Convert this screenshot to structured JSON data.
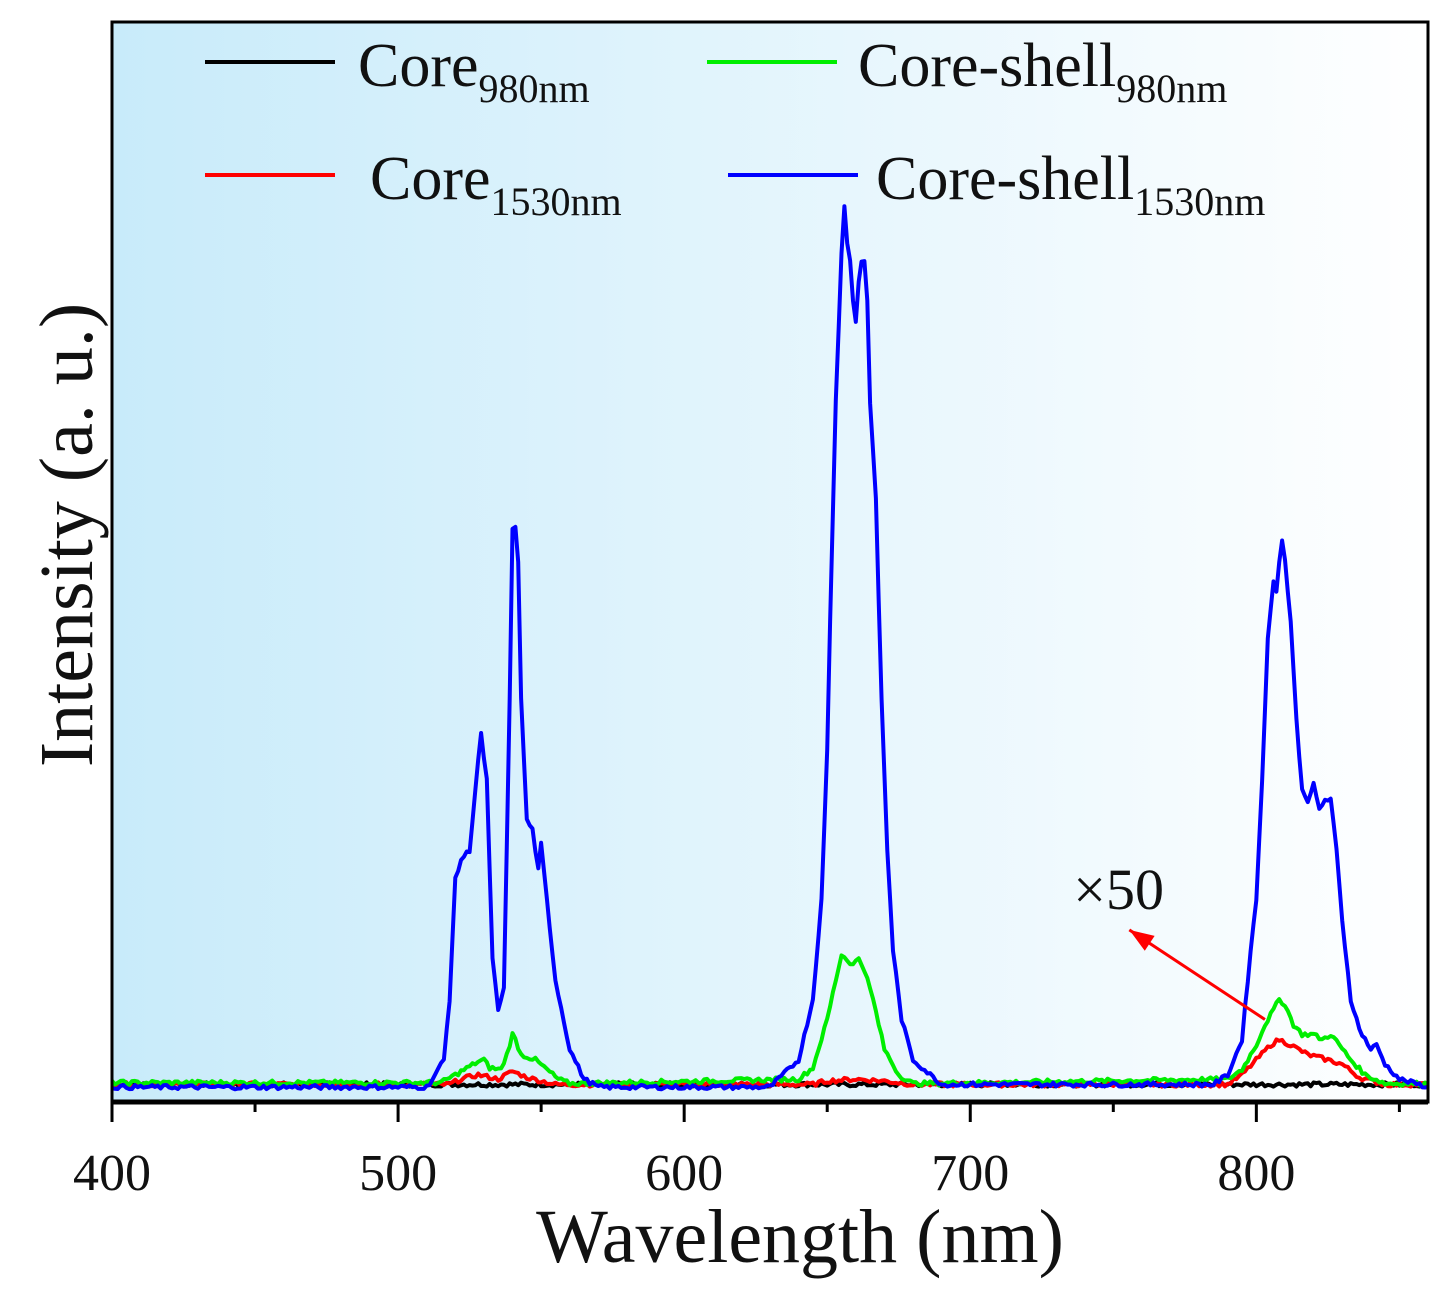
{
  "chart_data": {
    "type": "line",
    "title": "",
    "xlabel": "Wavelength (nm)",
    "ylabel": "Intensity (a. u.)",
    "xlim": [
      400,
      860
    ],
    "ylim": [
      -2,
      121
    ],
    "xticks": [
      400,
      500,
      600,
      700,
      800
    ],
    "xtick_labels": [
      "400",
      "500",
      "600",
      "700",
      "800"
    ],
    "minor_xticks": [
      450,
      550,
      650,
      750,
      850
    ],
    "yticks": [],
    "grid": false,
    "legend_position": "top",
    "background": {
      "from": "#c8ebfa",
      "to": "#ffffff"
    },
    "series": [
      {
        "name": "Core",
        "subscript": "980nm",
        "color": "#000000",
        "x": [
          400,
          420,
          440,
          460,
          480,
          500,
          520,
          540,
          560,
          580,
          600,
          620,
          640,
          660,
          680,
          700,
          720,
          740,
          760,
          780,
          800,
          820,
          840,
          860
        ],
        "y": [
          0,
          0,
          0,
          0,
          0,
          0,
          0,
          0,
          0,
          0,
          0,
          0,
          0,
          0,
          0,
          0,
          0,
          0,
          0,
          0,
          0,
          0,
          0,
          0
        ]
      },
      {
        "name": "Core",
        "subscript": "1530nm",
        "color": "#ff0000",
        "x": [
          400,
          518,
          522,
          528,
          535,
          540,
          545,
          555,
          645,
          650,
          660,
          670,
          680,
          790,
          795,
          800,
          805,
          808,
          812,
          818,
          825,
          830,
          836,
          845,
          860
        ],
        "y": [
          0,
          0,
          0.6,
          1.1,
          0.6,
          1.5,
          0.8,
          0,
          0,
          0.4,
          0.6,
          0.4,
          0,
          0,
          1.1,
          2.8,
          4.5,
          5.1,
          4.5,
          3.4,
          2.8,
          2.3,
          0.8,
          0,
          0
        ]
      },
      {
        "name": "Core-shell",
        "subscript": "980nm",
        "color": "#00ee00",
        "x": [
          400,
          515,
          520,
          528,
          530,
          532,
          536,
          538,
          540,
          541,
          543,
          548,
          552,
          556,
          560,
          640,
          645,
          650,
          653,
          655,
          657,
          659,
          661,
          663,
          666,
          670,
          675,
          680,
          790,
          795,
          800,
          803,
          806,
          808,
          810,
          813,
          816,
          820,
          823,
          826,
          829,
          833,
          838,
          845,
          860
        ],
        "y": [
          0.2,
          0.2,
          1.1,
          2.6,
          2.8,
          1.9,
          1.7,
          3.4,
          5.7,
          5.1,
          3.4,
          2.8,
          1.7,
          0.6,
          0.1,
          0.6,
          1.9,
          7.4,
          11.9,
          14.8,
          14.2,
          13.6,
          14.4,
          13.1,
          9.7,
          4,
          1.1,
          0.1,
          0.6,
          1.7,
          4.5,
          6.8,
          8.5,
          9.7,
          9.1,
          6.8,
          5.7,
          5.7,
          5.1,
          5.7,
          4.5,
          2.8,
          1.1,
          0.1,
          0.1
        ]
      },
      {
        "name": "Core-shell",
        "subscript": "1530nm",
        "color": "#0000ff",
        "x": [
          400,
          510,
          512,
          516,
          518,
          520,
          522,
          525,
          528,
          529,
          531,
          533,
          535,
          537,
          539,
          540,
          541,
          542,
          543,
          545,
          547,
          549,
          550,
          552,
          555,
          560,
          565,
          570,
          630,
          640,
          645,
          648,
          650,
          651,
          653,
          655,
          656,
          657,
          658,
          659,
          660,
          661,
          662,
          663,
          664,
          665,
          667,
          669,
          671,
          673,
          676,
          680,
          690,
          785,
          790,
          795,
          798,
          800,
          802,
          804,
          806,
          807,
          808,
          809,
          810,
          812,
          814,
          816,
          818,
          820,
          822,
          824,
          826,
          828,
          830,
          833,
          836,
          840,
          842,
          845,
          850,
          860
        ],
        "y": [
          -0.3,
          -0.3,
          0.6,
          2.8,
          9.7,
          23.3,
          25.6,
          26.7,
          36.9,
          39.8,
          34.7,
          14.2,
          8.5,
          10.8,
          43.8,
          63.1,
          63.6,
          59.7,
          43.8,
          30.1,
          29,
          24.4,
          27.3,
          21,
          11.9,
          4,
          0.6,
          -0.3,
          -0.3,
          2.8,
          9.7,
          21,
          38,
          52.8,
          77.8,
          94.9,
          100,
          96,
          93.8,
          89.2,
          86.9,
          91.5,
          93.8,
          93.8,
          89.2,
          77.8,
          66.5,
          43.8,
          26.7,
          15.3,
          7.4,
          2.8,
          0,
          0,
          1.1,
          5.1,
          15.3,
          21,
          34.7,
          50.6,
          57.4,
          56.3,
          59.7,
          61.9,
          59.7,
          52.8,
          41.5,
          33.5,
          32.4,
          34.1,
          31.3,
          32.4,
          32.4,
          26.7,
          18.8,
          9.7,
          6.3,
          4,
          4.5,
          2.3,
          0.6,
          -0.3
        ]
      }
    ],
    "annotations": [
      {
        "text": "×50",
        "x": 736,
        "y": 20,
        "color": "#111111",
        "arrow": {
          "from": [
            803,
            7.4
          ],
          "to": [
            755.6,
            17.6
          ],
          "color": "#ff0000"
        }
      }
    ]
  }
}
